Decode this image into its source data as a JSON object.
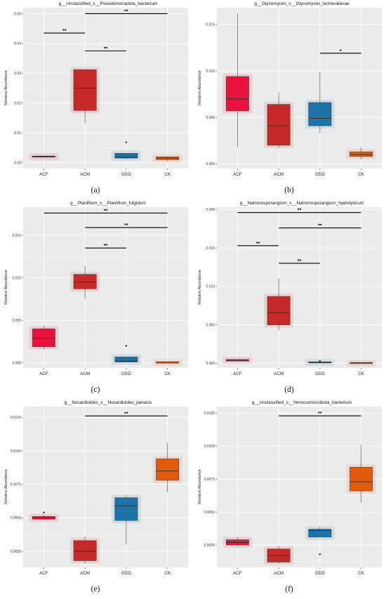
{
  "colors": {
    "ACF": "#e8123d",
    "ACM": "#c62a28",
    "GDD": "#1d72a6",
    "CK": "#e25b0d",
    "panel_bg": "#ebebeb",
    "grid": "#ffffff"
  },
  "chart_data": [
    {
      "type": "box",
      "title": "g__Unclassified_s__Pseudomonadota_bacterium",
      "caption": "(a)",
      "xlabel": "",
      "ylabel": "Relative Abundance",
      "categories": [
        "ACF",
        "ACM",
        "GDD",
        "CK"
      ],
      "ylim": [
        -0.002,
        0.052
      ],
      "yticks": [
        0,
        0.01,
        0.02,
        0.03,
        0.04,
        0.05
      ],
      "ytick_labels": [
        "0.00",
        "0.01",
        "0.02",
        "0.03",
        "0.04",
        "0.05"
      ],
      "boxes": [
        {
          "min": 0.0019,
          "q1": 0.0019,
          "median": 0.002,
          "q3": 0.0022,
          "max": 0.0022,
          "outliers": []
        },
        {
          "min": 0.0132,
          "q1": 0.0175,
          "median": 0.025,
          "q3": 0.0312,
          "max": 0.0312,
          "outliers": []
        },
        {
          "min": 0.0012,
          "q1": 0.0015,
          "median": 0.0018,
          "q3": 0.0031,
          "max": 0.0031,
          "outliers": [
            0.0068
          ]
        },
        {
          "min": 0.0006,
          "q1": 0.001,
          "median": 0.0015,
          "q3": 0.0019,
          "max": 0.0021,
          "outliers": []
        }
      ],
      "significance": [
        {
          "from": "ACF",
          "to": "ACM",
          "label": "**",
          "y": 0.0435
        },
        {
          "from": "ACM",
          "to": "CK",
          "label": "**",
          "y": 0.05
        },
        {
          "from": "ACM",
          "to": "GDD",
          "label": "**",
          "y": 0.0375
        }
      ]
    },
    {
      "type": "box",
      "title": "g__Glycomyces_s__Glycomyces_lechevalierae",
      "caption": "(b)",
      "xlabel": "",
      "ylabel": "Relative Abundance",
      "categories": [
        "ACF",
        "ACM",
        "GDD",
        "CK"
      ],
      "ylim": [
        -0.0005,
        0.0168
      ],
      "yticks": [
        0,
        0.005,
        0.01,
        0.015
      ],
      "ytick_labels": [
        "0.000",
        "0.005",
        "0.010",
        "0.015"
      ],
      "boxes": [
        {
          "min": 0.0018,
          "q1": 0.0057,
          "median": 0.007,
          "q3": 0.0094,
          "max": 0.0162,
          "outliers": []
        },
        {
          "min": 0.0017,
          "q1": 0.002,
          "median": 0.0041,
          "q3": 0.0064,
          "max": 0.0077,
          "outliers": []
        },
        {
          "min": 0.0033,
          "q1": 0.0041,
          "median": 0.0049,
          "q3": 0.0066,
          "max": 0.0099,
          "outliers": []
        },
        {
          "min": 0.0005,
          "q1": 0.0008,
          "median": 0.001,
          "q3": 0.0013,
          "max": 0.0018,
          "outliers": []
        }
      ],
      "significance": [
        {
          "from": "GDD",
          "to": "CK",
          "label": "*",
          "y": 0.0119
        }
      ]
    },
    {
      "type": "box",
      "title": "g__Planifilum_s__Planifilum_fulgidum",
      "caption": "(c)",
      "xlabel": "",
      "ylabel": "Relative Abundance",
      "categories": [
        "ACF",
        "ACM",
        "GDD",
        "CK"
      ],
      "ylim": [
        -0.0006,
        0.0183
      ],
      "yticks": [
        0,
        0.005,
        0.01,
        0.015
      ],
      "ytick_labels": [
        "0.000",
        "0.005",
        "0.010",
        "0.015"
      ],
      "boxes": [
        {
          "min": 0.0016,
          "q1": 0.0019,
          "median": 0.0029,
          "q3": 0.004,
          "max": 0.0044,
          "outliers": []
        },
        {
          "min": 0.0075,
          "q1": 0.0087,
          "median": 0.0095,
          "q3": 0.0104,
          "max": 0.0114,
          "outliers": []
        },
        {
          "min": 0.0001,
          "q1": 0.0001,
          "median": 0.0002,
          "q3": 0.0007,
          "max": 0.0007,
          "outliers": [
            0.002
          ]
        },
        {
          "min": 0.0001,
          "q1": 0.0001,
          "median": 0.0001,
          "q3": 0.0001,
          "max": 0.0001,
          "outliers": []
        }
      ],
      "significance": [
        {
          "from": "ACF",
          "to": "CK",
          "label": "**",
          "y": 0.0176
        },
        {
          "from": "ACM",
          "to": "CK",
          "label": "**",
          "y": 0.0159
        },
        {
          "from": "ACM",
          "to": "GDD",
          "label": "**",
          "y": 0.0135
        }
      ]
    },
    {
      "type": "box",
      "title": "g__Natronosporangium_s__Natronosporangium_hydrolyticum",
      "caption": "(d)",
      "xlabel": "",
      "ylabel": "Relative Abundance",
      "categories": [
        "ACF",
        "ACM",
        "GDD",
        "CK"
      ],
      "ylim": [
        -0.0006,
        0.0203
      ],
      "yticks": [
        0,
        0.005,
        0.01,
        0.015,
        0.02
      ],
      "ytick_labels": [
        "0.000",
        "0.005",
        "0.010",
        "0.015",
        "0.020"
      ],
      "boxes": [
        {
          "min": 0.0003,
          "q1": 0.0003,
          "median": 0.0004,
          "q3": 0.0005,
          "max": 0.0005,
          "outliers": []
        },
        {
          "min": 0.0043,
          "q1": 0.005,
          "median": 0.0066,
          "q3": 0.0087,
          "max": 0.011,
          "outliers": []
        },
        {
          "min": 0.0001,
          "q1": 0.0001,
          "median": 0.0001,
          "q3": 0.0002,
          "max": 0.0002,
          "outliers": [
            0.0003
          ]
        },
        {
          "min": 0.0001,
          "q1": 0.0001,
          "median": 0.0001,
          "q3": 0.0001,
          "max": 0.0001,
          "outliers": []
        }
      ],
      "significance": [
        {
          "from": "ACF",
          "to": "CK",
          "label": "**",
          "y": 0.0196
        },
        {
          "from": "ACM",
          "to": "CK",
          "label": "**",
          "y": 0.0176
        },
        {
          "from": "ACF",
          "to": "ACM",
          "label": "**",
          "y": 0.0153
        },
        {
          "from": "ACM",
          "to": "GDD",
          "label": "**",
          "y": 0.013
        }
      ]
    },
    {
      "type": "box",
      "title": "g__Nocardioides_s__Nocardioides_panacis",
      "caption": "(e)",
      "xlabel": "",
      "ylabel": "Relative Abundance",
      "categories": [
        "ACF",
        "ACM",
        "GDD",
        "CK"
      ],
      "ylim": [
        0.0013,
        0.0133
      ],
      "yticks": [
        0.0025,
        0.005,
        0.0075,
        0.01,
        0.0125
      ],
      "ytick_labels": [
        "0.0025",
        "0.0050",
        "0.0075",
        "0.0100",
        "0.0125"
      ],
      "boxes": [
        {
          "min": 0.0048,
          "q1": 0.0049,
          "median": 0.005,
          "q3": 0.0051,
          "max": 0.0052,
          "outliers": [
            0.0054
          ]
        },
        {
          "min": 0.0016,
          "q1": 0.0018,
          "median": 0.0025,
          "q3": 0.0033,
          "max": 0.0036,
          "outliers": []
        },
        {
          "min": 0.003,
          "q1": 0.0048,
          "median": 0.0059,
          "q3": 0.0065,
          "max": 0.0067,
          "outliers": []
        },
        {
          "min": 0.0069,
          "q1": 0.0078,
          "median": 0.0085,
          "q3": 0.0094,
          "max": 0.0106,
          "outliers": []
        }
      ],
      "significance": [
        {
          "from": "ACM",
          "to": "CK",
          "label": "**",
          "y": 0.0126
        }
      ]
    },
    {
      "type": "box",
      "title": "g__Unclassified_s__Verrucomicrobiota_bacterium",
      "caption": "(f)",
      "xlabel": "",
      "ylabel": "Relative Abundance",
      "categories": [
        "ACF",
        "ACM",
        "GDD",
        "CK"
      ],
      "ylim": [
        0.0008,
        0.013
      ],
      "yticks": [
        0.0025,
        0.005,
        0.0075,
        0.01,
        0.0125
      ],
      "ytick_labels": [
        "0.0025",
        "0.0050",
        "0.0075",
        "0.0100",
        "0.0125"
      ],
      "boxes": [
        {
          "min": 0.0024,
          "q1": 0.0025,
          "median": 0.0027,
          "q3": 0.0029,
          "max": 0.0031,
          "outliers": []
        },
        {
          "min": 0.0011,
          "q1": 0.0012,
          "median": 0.0017,
          "q3": 0.0022,
          "max": 0.0024,
          "outliers": []
        },
        {
          "min": 0.0031,
          "q1": 0.0031,
          "median": 0.0036,
          "q3": 0.0037,
          "max": 0.0039,
          "outliers": [
            0.0018
          ]
        },
        {
          "min": 0.0057,
          "q1": 0.0066,
          "median": 0.0073,
          "q3": 0.0084,
          "max": 0.0101,
          "outliers": []
        }
      ],
      "significance": [
        {
          "from": "ACM",
          "to": "CK",
          "label": "**",
          "y": 0.0123
        }
      ]
    }
  ]
}
